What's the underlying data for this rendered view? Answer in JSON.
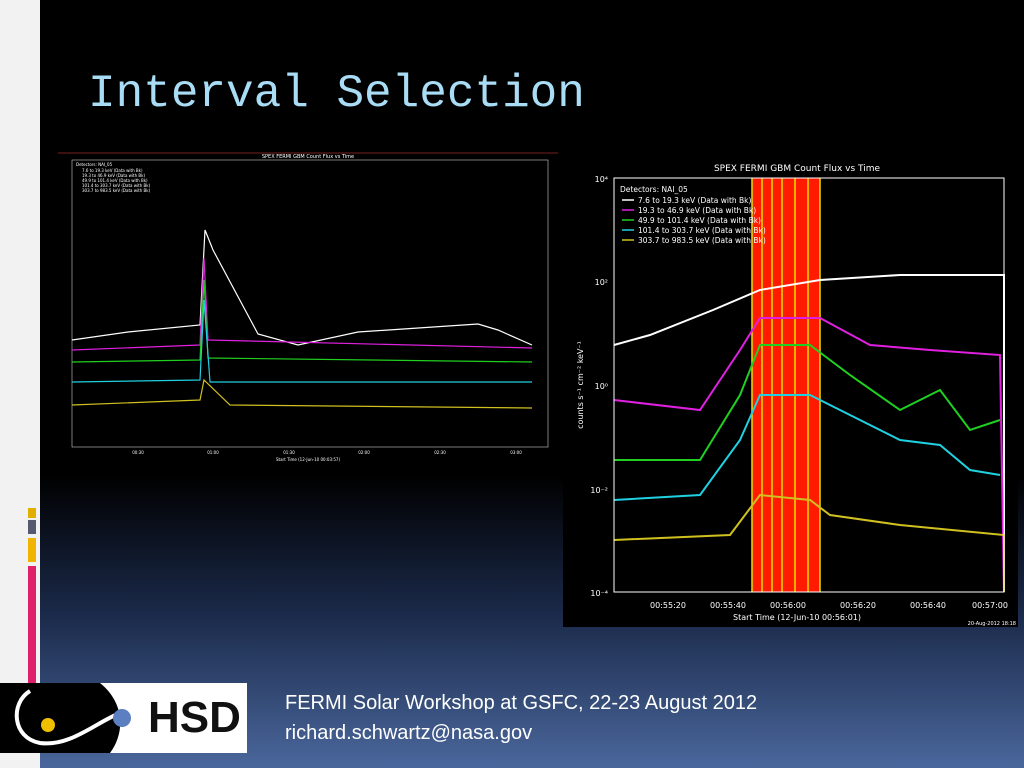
{
  "title": "Interval Selection",
  "left_plot": {
    "title": "SPEX FERMI GBM Count Flux vs Time",
    "detectors": "Detectors: NAI_05",
    "legend": [
      "7.6 to 19.3 keV (Data with Bk)",
      "19.3 to 46.9 keV (Data with Bk)",
      "49.9 to 101.4 keV (Data with Bk)",
      "101.4 to 303.7 keV (Data with Bk)",
      "303.7 to 983.5 keV (Data with Bk)"
    ],
    "x_ticks": [
      "00:30",
      "01:00",
      "01:30",
      "02:00",
      "02:30",
      "03:00"
    ],
    "x_label": "Start Time (12-Jun-10 00:03:57)"
  },
  "right_plot": {
    "title": "SPEX FERMI GBM Count Flux vs Time",
    "detectors": "Detectors: NAI_05",
    "legend": [
      "7.6 to 19.3 keV (Data with Bk)",
      "19.3 to 46.9 keV (Data with Bk)",
      "49.9 to 101.4 keV (Data with Bk)",
      "101.4 to 303.7 keV (Data with Bk)",
      "303.7 to 983.5 keV (Data with Bk)"
    ],
    "y_label": "counts s⁻¹ cm⁻² keV⁻¹",
    "y_ticks": [
      "10⁴",
      "10²",
      "10⁰",
      "10⁻²",
      "10⁻⁴"
    ],
    "x_ticks": [
      "00:55:20",
      "00:55:40",
      "00:56:00",
      "00:56:20",
      "00:56:40",
      "00:57:00"
    ],
    "x_label": "Start Time (12-Jun-10 00:56:01)",
    "stamp": "20-Aug-2012 18:18"
  },
  "footer": {
    "logo": "HSD",
    "event": "FERMI Solar Workshop at GSFC, 22-23 August 2012",
    "email": "richard.schwartz@nasa.gov"
  }
}
